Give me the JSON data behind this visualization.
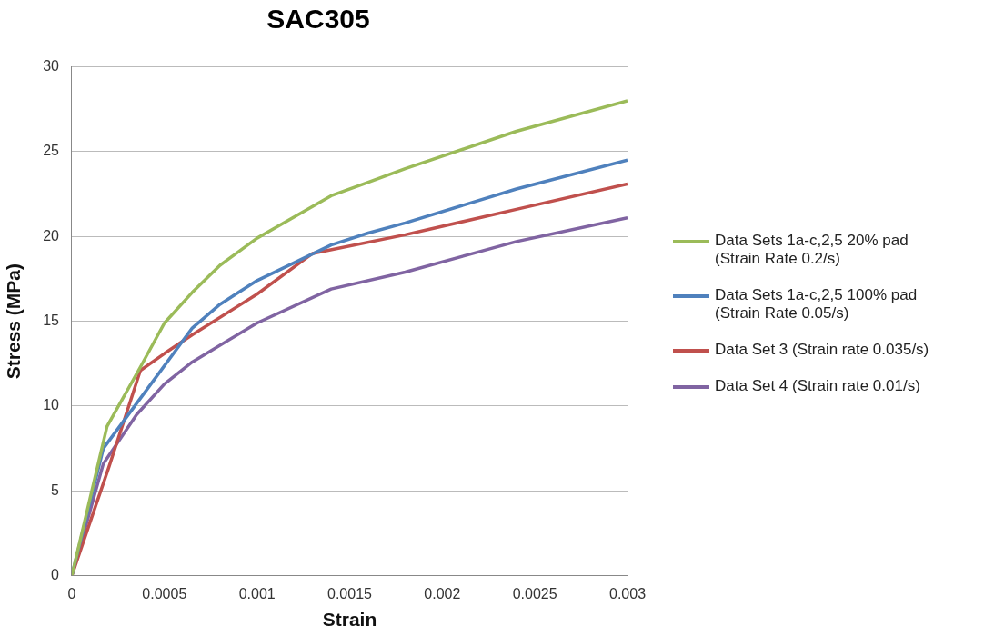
{
  "chart_data": {
    "type": "line",
    "title": "SAC305",
    "xlabel": "Strain",
    "ylabel": "Stress (MPa)",
    "xlim": [
      0,
      0.003
    ],
    "xticks": [
      0,
      0.0005,
      0.001,
      0.0015,
      0.002,
      0.0025,
      0.003
    ],
    "ylim": [
      0,
      30
    ],
    "yticks": [
      0,
      5,
      10,
      15,
      20,
      25,
      30
    ],
    "grid": "y",
    "legend": "right",
    "marker": "none",
    "series": [
      {
        "name": "Data Sets 1a-c,2,5 20% pad (Strain Rate 0.2/s)",
        "color": "#9bbb59",
        "x": [
          0,
          0.00019,
          0.00037,
          0.0005,
          0.00065,
          0.0008,
          0.001,
          0.0014,
          0.0016,
          0.0018,
          0.0024,
          0.003
        ],
        "values": [
          0,
          8.8,
          12.3,
          14.9,
          16.7,
          18.3,
          19.9,
          22.4,
          23.2,
          24,
          26.2,
          28
        ]
      },
      {
        "name": "Data Sets 1a-c,2,5 100% pad (Strain Rate 0.05/s)",
        "color": "#4f81bd",
        "x": [
          0,
          0.00017,
          0.0004,
          0.00065,
          0.0008,
          0.001,
          0.0014,
          0.0016,
          0.0018,
          0.0024,
          0.003
        ],
        "values": [
          0,
          7.5,
          10.9,
          14.6,
          16,
          17.4,
          19.5,
          20.2,
          20.8,
          22.8,
          24.5
        ]
      },
      {
        "name": "Data Set 3 (Strain rate 0.035/s)",
        "color": "#c0504d",
        "x": [
          0,
          0.0002,
          0.00037,
          0.0005,
          0.00065,
          0.001,
          0.0013,
          0.0018,
          0.0024,
          0.003
        ],
        "values": [
          0,
          6.4,
          12.1,
          13.1,
          14.2,
          16.6,
          19,
          20.1,
          21.6,
          23.1
        ]
      },
      {
        "name": "Data Set 4 (Strain rate 0.01/s)",
        "color": "#8064a2",
        "x": [
          0,
          0.00017,
          0.00035,
          0.0005,
          0.00065,
          0.001,
          0.0014,
          0.0018,
          0.0024,
          0.003
        ],
        "values": [
          0,
          6.6,
          9.5,
          11.3,
          12.6,
          14.9,
          16.9,
          17.9,
          19.7,
          21.1
        ]
      }
    ]
  }
}
